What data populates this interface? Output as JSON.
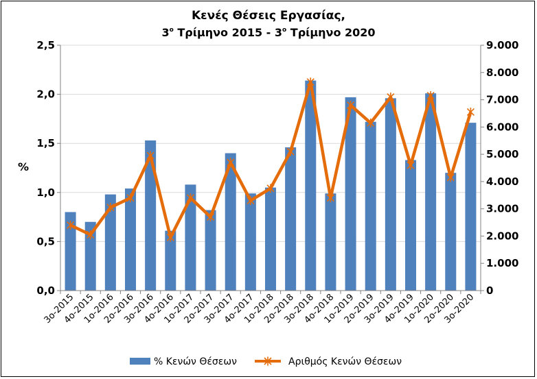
{
  "chart_data": {
    "type": "bar",
    "title_line1": "Κενές Θέσεις Εργασίας,",
    "title_line2_start": "3",
    "title_line2_sup1": "ο",
    "title_line2_mid": " Τρίμηνο 2015 - 3",
    "title_line2_sup2": "ο",
    "title_line2_end": " Τρίμηνο 2020",
    "ylabel": "%",
    "categories": [
      "3ο-2015",
      "4ο-2015",
      "1ο-2016",
      "2ο-2016",
      "3ο-2016",
      "4ο-2016",
      "1ο-2017",
      "2ο-2017",
      "3ο-2017",
      "4ο-2017",
      "1ο-2018",
      "2ο-2018",
      "3ο-2018",
      "4ο-2018",
      "1ο-2019",
      "2ο-2019",
      "3ο-2019",
      "4ο-2019",
      "1ο-2020",
      "2ο-2020",
      "3ο-2020"
    ],
    "ylim": [
      0,
      2.5
    ],
    "y2lim": [
      0,
      9000
    ],
    "yticks": [
      "0,0",
      "0,5",
      "1,0",
      "1,5",
      "2,0",
      "2,5"
    ],
    "y2ticks": [
      "0",
      "1.000",
      "2.000",
      "3.000",
      "4.000",
      "5.000",
      "6.000",
      "7.000",
      "8.000",
      "9.000"
    ],
    "grid": true,
    "legend_position": "bottom",
    "series": [
      {
        "name": "% Κενών Θέσεων",
        "type": "bar",
        "axis": "left",
        "color": "#4f81bd",
        "values": [
          0.8,
          0.7,
          0.98,
          1.04,
          1.53,
          0.61,
          1.08,
          0.82,
          1.4,
          0.99,
          1.05,
          1.46,
          2.14,
          0.99,
          1.97,
          1.72,
          1.96,
          1.33,
          2.01,
          1.2,
          1.71
        ]
      },
      {
        "name": "Αριθμός Κενών Θέσεων",
        "type": "line",
        "axis": "right",
        "color": "#e46c0a",
        "values": [
          2400,
          2050,
          3050,
          3400,
          4950,
          1950,
          3400,
          2700,
          4700,
          3300,
          3750,
          5100,
          7650,
          3400,
          6800,
          6150,
          7100,
          4600,
          7150,
          4150,
          6550
        ]
      }
    ]
  }
}
